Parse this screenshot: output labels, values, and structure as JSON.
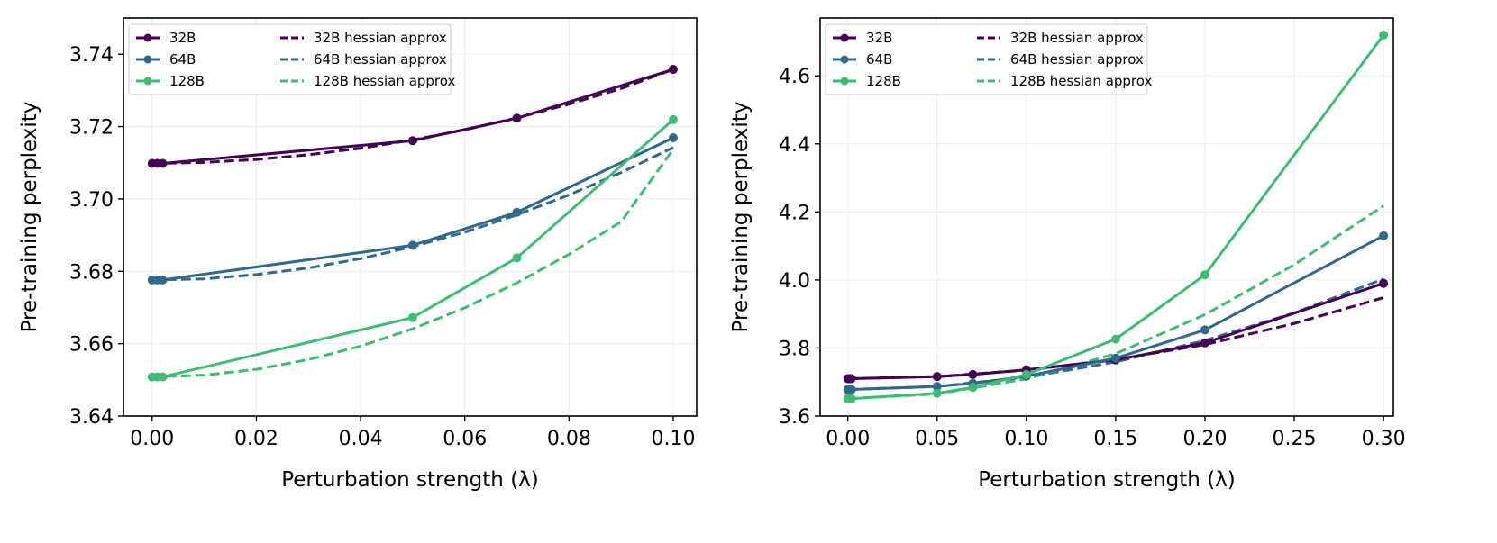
{
  "chart_data": [
    {
      "type": "line",
      "title": "",
      "xlabel": "Perturbation strength (λ)",
      "ylabel": "Pre-training perplexity",
      "xlim": [
        -0.0055,
        0.1045
      ],
      "ylim": [
        3.64,
        3.75
      ],
      "xticks": [
        0.0,
        0.02,
        0.04,
        0.06,
        0.08,
        0.1
      ],
      "xtick_labels": [
        "0.00",
        "0.02",
        "0.04",
        "0.06",
        "0.08",
        "0.10"
      ],
      "yticks": [
        3.64,
        3.66,
        3.68,
        3.7,
        3.72,
        3.74
      ],
      "ytick_labels": [
        "3.64",
        "3.66",
        "3.68",
        "3.70",
        "3.72",
        "3.74"
      ],
      "grid": true,
      "legend_position": "top-left",
      "series": [
        {
          "name": "32B",
          "style": "solid",
          "markers": true,
          "color": "#440154",
          "x": [
            0.0,
            0.001,
            0.002,
            0.05,
            0.07,
            0.1
          ],
          "y": [
            3.7098,
            3.7098,
            3.7098,
            3.7161,
            3.7223,
            3.7358
          ]
        },
        {
          "name": "64B",
          "style": "solid",
          "markers": true,
          "color": "#31688e",
          "x": [
            0.0,
            0.001,
            0.002,
            0.05,
            0.07,
            0.1
          ],
          "y": [
            3.6776,
            3.6776,
            3.6776,
            3.6872,
            3.6963,
            3.7169
          ]
        },
        {
          "name": "128B",
          "style": "solid",
          "markers": true,
          "color": "#3fbc73",
          "x": [
            0.0,
            0.001,
            0.002,
            0.05,
            0.07,
            0.1
          ],
          "y": [
            3.6508,
            3.6508,
            3.6508,
            3.6672,
            3.6837,
            3.7219
          ]
        },
        {
          "name": "32B hessian approx",
          "style": "dashed",
          "markers": false,
          "color": "#440154",
          "x": [
            0.0,
            0.01,
            0.02,
            0.03,
            0.04,
            0.05,
            0.06,
            0.07,
            0.08,
            0.09,
            0.1
          ],
          "y": [
            3.7098,
            3.7101,
            3.7109,
            3.7122,
            3.714,
            3.7163,
            3.7191,
            3.7224,
            3.7262,
            3.7305,
            3.7358
          ]
        },
        {
          "name": "64B hessian approx",
          "style": "dashed",
          "markers": false,
          "color": "#31688e",
          "x": [
            0.0,
            0.01,
            0.02,
            0.03,
            0.04,
            0.05,
            0.06,
            0.07,
            0.08,
            0.09,
            0.1
          ],
          "y": [
            3.6776,
            3.6779,
            3.6791,
            3.6809,
            3.6835,
            3.6868,
            3.6908,
            3.6956,
            3.7011,
            3.7073,
            3.7142
          ]
        },
        {
          "name": "128B hessian approx",
          "style": "dashed",
          "markers": false,
          "color": "#3fbc73",
          "x": [
            0.0,
            0.01,
            0.02,
            0.03,
            0.04,
            0.05,
            0.06,
            0.07,
            0.08,
            0.09,
            0.1
          ],
          "y": [
            3.6508,
            3.6513,
            3.6529,
            3.6556,
            3.6593,
            3.6641,
            3.6699,
            3.6768,
            3.6847,
            3.6937,
            3.7137
          ]
        }
      ]
    },
    {
      "type": "line",
      "title": "",
      "xlabel": "Perturbation strength (λ)",
      "ylabel": "Pre-training perplexity",
      "xlim": [
        -0.0155,
        0.3055
      ],
      "ylim": [
        3.6,
        4.77
      ],
      "xticks": [
        0.0,
        0.05,
        0.1,
        0.15,
        0.2,
        0.25,
        0.3
      ],
      "xtick_labels": [
        "0.00",
        "0.05",
        "0.10",
        "0.15",
        "0.20",
        "0.25",
        "0.30"
      ],
      "yticks": [
        3.6,
        3.8,
        4.0,
        4.2,
        4.4,
        4.6
      ],
      "ytick_labels": [
        "3.6",
        "3.8",
        "4.0",
        "4.2",
        "4.4",
        "4.6"
      ],
      "grid": true,
      "legend_position": "top-left",
      "series": [
        {
          "name": "32B",
          "style": "solid",
          "markers": true,
          "color": "#440154",
          "x": [
            0.0,
            0.001,
            0.002,
            0.05,
            0.07,
            0.1,
            0.15,
            0.2,
            0.3
          ],
          "y": [
            3.71,
            3.71,
            3.71,
            3.716,
            3.722,
            3.736,
            3.765,
            3.815,
            3.99
          ]
        },
        {
          "name": "64B",
          "style": "solid",
          "markers": true,
          "color": "#31688e",
          "x": [
            0.0,
            0.001,
            0.002,
            0.05,
            0.07,
            0.1,
            0.15,
            0.2,
            0.3
          ],
          "y": [
            3.678,
            3.678,
            3.678,
            3.687,
            3.696,
            3.717,
            3.77,
            3.853,
            4.13
          ]
        },
        {
          "name": "128B",
          "style": "solid",
          "markers": true,
          "color": "#3fbc73",
          "x": [
            0.0,
            0.001,
            0.002,
            0.05,
            0.07,
            0.1,
            0.15,
            0.2,
            0.3
          ],
          "y": [
            3.651,
            3.651,
            3.651,
            3.667,
            3.684,
            3.722,
            3.826,
            4.015,
            4.72
          ]
        },
        {
          "name": "32B hessian approx",
          "style": "dashed",
          "markers": false,
          "color": "#440154",
          "x": [
            0.0,
            0.05,
            0.1,
            0.15,
            0.2,
            0.25,
            0.3
          ],
          "y": [
            3.71,
            3.716,
            3.735,
            3.766,
            3.81,
            3.872,
            3.948
          ]
        },
        {
          "name": "64B hessian approx",
          "style": "dashed",
          "markers": false,
          "color": "#31688e",
          "x": [
            0.0,
            0.05,
            0.1,
            0.15,
            0.2,
            0.25,
            0.3
          ],
          "y": [
            3.678,
            3.687,
            3.714,
            3.759,
            3.822,
            3.903,
            4.003
          ]
        },
        {
          "name": "128B hessian approx",
          "style": "dashed",
          "markers": false,
          "color": "#3fbc73",
          "x": [
            0.0,
            0.05,
            0.1,
            0.15,
            0.2,
            0.25,
            0.3
          ],
          "y": [
            3.651,
            3.665,
            3.709,
            3.783,
            3.898,
            4.045,
            4.218
          ]
        }
      ]
    }
  ]
}
